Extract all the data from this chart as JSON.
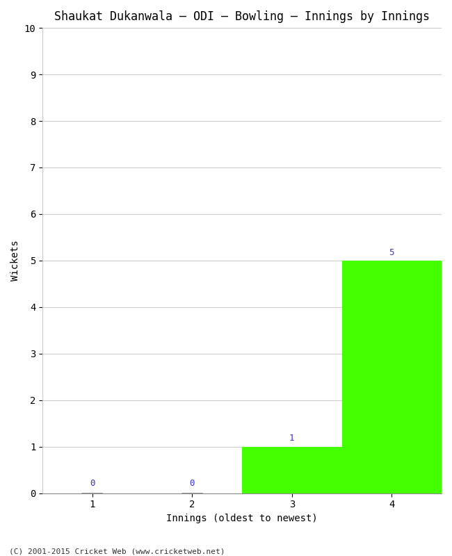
{
  "title": "Shaukat Dukanwala – ODI – Bowling – Innings by Innings",
  "xlabel": "Innings (oldest to newest)",
  "ylabel": "Wickets",
  "categories": [
    "1",
    "2",
    "3",
    "4"
  ],
  "values": [
    0,
    0,
    1,
    5
  ],
  "bar_color_zero": "#ffffff",
  "bar_color_nonzero": "#44ff00",
  "bar_edge_color": "#000000",
  "annotation_color": "#3333cc",
  "ylim": [
    0,
    10
  ],
  "yticks": [
    0,
    1,
    2,
    3,
    4,
    5,
    6,
    7,
    8,
    9,
    10
  ],
  "background_color": "#ffffff",
  "grid_color": "#cccccc",
  "title_fontsize": 12,
  "axis_label_fontsize": 10,
  "tick_fontsize": 10,
  "annotation_fontsize": 9,
  "footer": "(C) 2001-2015 Cricket Web (www.cricketweb.net)"
}
